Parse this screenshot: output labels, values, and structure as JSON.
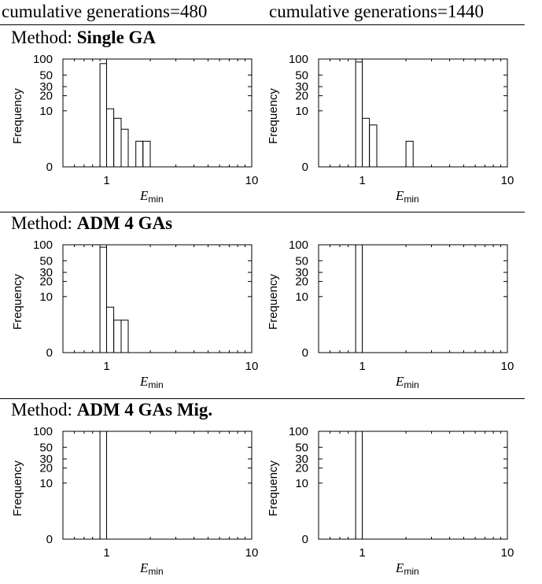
{
  "column_headers": [
    "cumulative generations=480",
    "cumulative generations=1440"
  ],
  "method_prefix": "Method:",
  "methods": [
    "Single GA",
    "ADM 4 GAs",
    "ADM 4 GAs Mig."
  ],
  "axis_text": {
    "ylabel": "Frequency",
    "xlabel_main": "E",
    "xlabel_sub": "min",
    "y_ticks": [
      "100",
      "50",
      "30",
      "20",
      "10",
      "0"
    ],
    "x_ticks": [
      "1",
      "10"
    ]
  },
  "chart_data": [
    {
      "type": "bar",
      "method": "Single GA",
      "panel": "cumulative generations=480",
      "x_scale": "log",
      "xlim": [
        0.5,
        10
      ],
      "y_scale": "log(1+y)",
      "ylim": [
        0,
        100
      ],
      "bins": [
        [
          0.9,
          1.0,
          82
        ],
        [
          1.0,
          1.12,
          11
        ],
        [
          1.12,
          1.26,
          7
        ],
        [
          1.26,
          1.41,
          4
        ],
        [
          1.59,
          1.78,
          2
        ],
        [
          1.78,
          2.0,
          2
        ]
      ]
    },
    {
      "type": "bar",
      "method": "Single GA",
      "panel": "cumulative generations=1440",
      "x_scale": "log",
      "xlim": [
        0.5,
        10
      ],
      "y_scale": "log(1+y)",
      "ylim": [
        0,
        100
      ],
      "bins": [
        [
          0.9,
          1.0,
          88
        ],
        [
          1.0,
          1.12,
          7
        ],
        [
          1.12,
          1.26,
          5
        ],
        [
          2.0,
          2.24,
          2
        ]
      ]
    },
    {
      "type": "bar",
      "method": "ADM 4 GAs",
      "panel": "cumulative generations=480",
      "x_scale": "log",
      "xlim": [
        0.5,
        10
      ],
      "y_scale": "log(1+y)",
      "ylim": [
        0,
        100
      ],
      "bins": [
        [
          0.9,
          1.0,
          90
        ],
        [
          1.0,
          1.12,
          6
        ],
        [
          1.12,
          1.26,
          3
        ],
        [
          1.26,
          1.41,
          3
        ]
      ]
    },
    {
      "type": "bar",
      "method": "ADM 4 GAs",
      "panel": "cumulative generations=1440",
      "x_scale": "log",
      "xlim": [
        0.5,
        10
      ],
      "y_scale": "log(1+y)",
      "ylim": [
        0,
        100
      ],
      "bins": [
        [
          0.9,
          1.0,
          100
        ]
      ]
    },
    {
      "type": "bar",
      "method": "ADM 4 GAs Mig.",
      "panel": "cumulative generations=480",
      "x_scale": "log",
      "xlim": [
        0.5,
        10
      ],
      "y_scale": "log(1+y)",
      "ylim": [
        0,
        100
      ],
      "bins": [
        [
          0.9,
          1.0,
          100
        ]
      ]
    },
    {
      "type": "bar",
      "method": "ADM 4 GAs Mig.",
      "panel": "cumulative generations=1440",
      "x_scale": "log",
      "xlim": [
        0.5,
        10
      ],
      "y_scale": "log(1+y)",
      "ylim": [
        0,
        100
      ],
      "bins": [
        [
          0.9,
          1.0,
          100
        ]
      ]
    }
  ]
}
